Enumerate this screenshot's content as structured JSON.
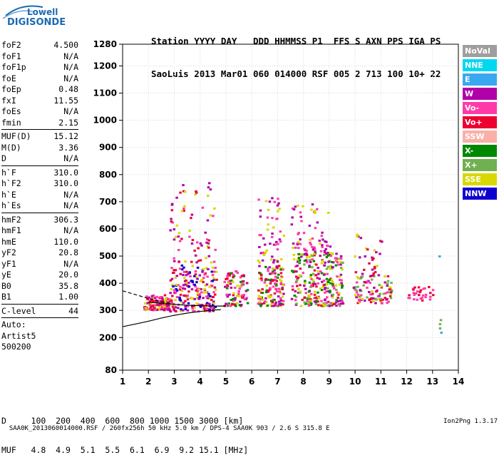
{
  "logo": {
    "line1": "Lowell",
    "line2": "DIGISONDE"
  },
  "header": {
    "row1": "Station YYYY DAY   DDD HHMMSS P1  FFS S AXN PPS IGA PS",
    "row2": "SaoLuis 2013 Mar01 060 014000 RSF 005 2 713 100 10+ 22"
  },
  "params": [
    {
      "label": "foF2",
      "value": "4.500"
    },
    {
      "label": "foF1",
      "value": "N/A"
    },
    {
      "label": "foF1p",
      "value": "N/A"
    },
    {
      "label": "foE",
      "value": "N/A"
    },
    {
      "label": "foEp",
      "value": "0.48"
    },
    {
      "label": "fxI",
      "value": "11.55"
    },
    {
      "label": "foEs",
      "value": "N/A"
    },
    {
      "label": "fmin",
      "value": "2.15"
    },
    {
      "sep": true
    },
    {
      "label": "MUF(D)",
      "value": "15.12"
    },
    {
      "label": "M(D)",
      "value": "3.36"
    },
    {
      "label": "D",
      "value": "N/A"
    },
    {
      "sep": true
    },
    {
      "label": "h`F",
      "value": "310.0"
    },
    {
      "label": "h`F2",
      "value": "310.0"
    },
    {
      "label": "h`E",
      "value": "N/A"
    },
    {
      "label": "h`Es",
      "value": "N/A"
    },
    {
      "sep": true
    },
    {
      "label": "hmF2",
      "value": "306.3"
    },
    {
      "label": "hmF1",
      "value": "N/A"
    },
    {
      "label": "hmE",
      "value": "110.0"
    },
    {
      "label": "yF2",
      "value": "20.8"
    },
    {
      "label": "yF1",
      "value": "N/A"
    },
    {
      "label": "yE",
      "value": "20.0"
    },
    {
      "label": "B0",
      "value": "35.8"
    },
    {
      "label": "B1",
      "value": "1.00"
    },
    {
      "sep": true
    },
    {
      "label": "C-level",
      "value": "44"
    },
    {
      "sep": true
    },
    {
      "text": "Auto:"
    },
    {
      "text": "Artist5"
    },
    {
      "text": "500200"
    }
  ],
  "legend": [
    {
      "label": "NoVal",
      "color": "#9e9e9e"
    },
    {
      "label": "NNE",
      "color": "#00d8f0"
    },
    {
      "label": "E",
      "color": "#3aa8f0"
    },
    {
      "label": "W",
      "color": "#b000a8"
    },
    {
      "label": "Vo-",
      "color": "#ff3aa8"
    },
    {
      "label": "Vo+",
      "color": "#ee0030"
    },
    {
      "label": "SSW",
      "color": "#f8b0a8"
    },
    {
      "label": "X-",
      "color": "#008800"
    },
    {
      "label": "X+",
      "color": "#70b050"
    },
    {
      "label": "SSE",
      "color": "#d8d800"
    },
    {
      "label": "NNW",
      "color": "#1000d0"
    }
  ],
  "muf_table": {
    "row1": "D     100  200  400  600  800 1000 1500 3000 [km]",
    "row2": "MUF   4.8  4.9  5.1  5.5  6.1  6.9  9.2 15.1 [MHz]"
  },
  "footer": {
    "left": "SAA0K_2013060014000.RSF / 260fx256h 50 kHz 5.0 km / DPS-4 SAA0K 903 / 2.6 S 315.8 E",
    "right": "Ion2Png 1.3.17"
  },
  "chart_data": {
    "type": "scatter",
    "title": "",
    "xlabel": "",
    "ylabel": "",
    "xlim": [
      1,
      14
    ],
    "ylim": [
      80,
      1280
    ],
    "x_ticks": [
      1,
      2,
      3,
      4,
      5,
      6,
      7,
      8,
      9,
      10,
      11,
      12,
      13,
      14
    ],
    "y_ticks": [
      80,
      200,
      300,
      400,
      500,
      600,
      700,
      800,
      900,
      1000,
      1100,
      1200,
      1280
    ],
    "y_tick_labels": [
      "80",
      "200",
      "300",
      "400",
      "500",
      "600",
      "700",
      "800",
      "900",
      "1000",
      "1100",
      "1200",
      "1280"
    ],
    "grid": true,
    "legend_position": "right",
    "echo_clusters": [
      {
        "f": [
          1.8,
          2.8
        ],
        "h": [
          305,
          360
        ],
        "colors": [
          "#ff3aa8",
          "#ee0030",
          "#b000a8",
          "#d8d800"
        ],
        "n": 140
      },
      {
        "f": [
          2.8,
          4.6
        ],
        "h": [
          300,
          470
        ],
        "colors": [
          "#b000a8",
          "#ee0030",
          "#ff3aa8",
          "#1000d0",
          "#d8d800"
        ],
        "n": 220
      },
      {
        "f": [
          2.8,
          4.6
        ],
        "h": [
          480,
          780
        ],
        "colors": [
          "#b000a8",
          "#ff3aa8",
          "#d8d800",
          "#ee0030"
        ],
        "n": 70
      },
      {
        "f": [
          4.9,
          5.8
        ],
        "h": [
          320,
          450
        ],
        "colors": [
          "#ee0030",
          "#ff3aa8",
          "#d8d800",
          "#008800",
          "#b000a8"
        ],
        "n": 90
      },
      {
        "f": [
          6.2,
          7.2
        ],
        "h": [
          320,
          470
        ],
        "colors": [
          "#d8d800",
          "#ee0030",
          "#ff3aa8",
          "#b000a8",
          "#008800"
        ],
        "n": 140
      },
      {
        "f": [
          6.2,
          7.2
        ],
        "h": [
          480,
          720
        ],
        "colors": [
          "#d8d800",
          "#b000a8",
          "#ff3aa8"
        ],
        "n": 55
      },
      {
        "f": [
          7.5,
          9.5
        ],
        "h": [
          320,
          520
        ],
        "colors": [
          "#d8d800",
          "#ee0030",
          "#ff3aa8",
          "#b000a8",
          "#70b050",
          "#008800"
        ],
        "n": 290
      },
      {
        "f": [
          7.5,
          9.0
        ],
        "h": [
          520,
          700
        ],
        "colors": [
          "#b000a8",
          "#d8d800",
          "#ff3aa8"
        ],
        "n": 60
      },
      {
        "f": [
          9.9,
          11.4
        ],
        "h": [
          330,
          430
        ],
        "colors": [
          "#ee0030",
          "#ff3aa8",
          "#d8d800",
          "#b000a8",
          "#70b050"
        ],
        "n": 100
      },
      {
        "f": [
          9.9,
          11.0
        ],
        "h": [
          430,
          600
        ],
        "colors": [
          "#ee0030",
          "#d8d800",
          "#b000a8"
        ],
        "n": 30
      },
      {
        "f": [
          12.0,
          13.0
        ],
        "h": [
          340,
          390
        ],
        "colors": [
          "#ee0030",
          "#ff3aa8"
        ],
        "n": 30
      },
      {
        "f": [
          13.2,
          13.3
        ],
        "h": [
          210,
          800
        ],
        "colors": [
          "#1000d0",
          "#3aa8f0",
          "#70b050"
        ],
        "n": 5
      }
    ],
    "traces": [
      {
        "name": "",
        "style": "solid",
        "points": [
          [
            1,
            240
          ],
          [
            1.5,
            250
          ],
          [
            2,
            260
          ],
          [
            2.5,
            272
          ],
          [
            3,
            282
          ],
          [
            3.5,
            290
          ],
          [
            4,
            296
          ],
          [
            4.5,
            301
          ],
          [
            4.8,
            303
          ]
        ]
      },
      {
        "name": "",
        "style": "dashed",
        "points": [
          [
            1,
            372
          ],
          [
            1.5,
            358
          ],
          [
            2,
            344
          ],
          [
            2.5,
            332
          ],
          [
            3,
            322
          ]
        ]
      },
      {
        "name": "",
        "style": "solid",
        "points": [
          [
            2,
            330
          ],
          [
            2.5,
            326
          ],
          [
            3,
            322
          ],
          [
            3.5,
            319
          ],
          [
            4,
            317
          ],
          [
            4.5,
            316
          ],
          [
            5,
            316
          ]
        ]
      }
    ]
  }
}
